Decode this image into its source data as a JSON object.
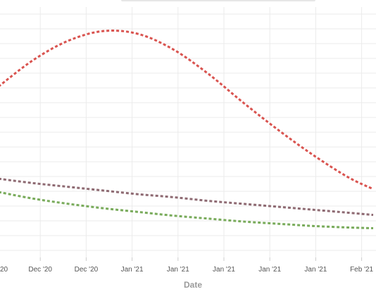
{
  "chart_data": {
    "type": "line",
    "xlabel": "Date",
    "ylabel": "",
    "x_tick_labels": [
      "20",
      "Dec '20",
      "Dec '20",
      "Jan '21",
      "Jan '21",
      "Jan '21",
      "Jan '21",
      "Jan '21",
      "Feb '21"
    ],
    "x": [
      "2020-11-27",
      "2020-12-04",
      "2020-12-11",
      "2020-12-18",
      "2020-12-25",
      "2021-01-01",
      "2021-01-08",
      "2021-01-15",
      "2021-01-22",
      "2021-01-29",
      "2021-02-05",
      "2021-02-10"
    ],
    "series": [
      {
        "color": "#d9534f",
        "values": [
          62,
          98,
          124,
          137,
          133,
          112,
          79,
          40,
          3,
          -31,
          -61,
          -77
        ]
      },
      {
        "color": "#8e6a72",
        "values": [
          -63,
          -69,
          -74,
          -79,
          -84,
          -88,
          -93,
          -97,
          -101,
          -105,
          -109,
          -112
        ]
      },
      {
        "color": "#79ab5b",
        "values": [
          -81,
          -90,
          -97,
          -103,
          -108,
          -113,
          -117,
          -121,
          -124,
          -127,
          -129,
          -130
        ]
      }
    ],
    "ylim": [
      -160,
      160
    ],
    "grid": true,
    "legend": "none"
  }
}
